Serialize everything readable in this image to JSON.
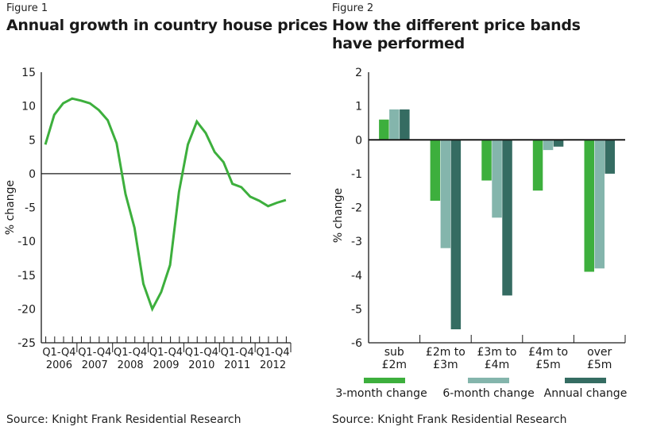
{
  "figures": [
    {
      "label": "Figure 1",
      "title": "Annual growth in country house prices",
      "source": "Source: Knight Frank Residential Research"
    },
    {
      "label": "Figure 2",
      "title_line1": "How the different price bands",
      "title_line2": "have performed",
      "source": "Source: Knight Frank Residential Research"
    }
  ],
  "colors": {
    "line": "#3daf3d",
    "three_month": "#3daf3d",
    "six_month": "#84b5ac",
    "annual": "#356c62",
    "axis": "#1a1a1a"
  },
  "chart_data": [
    {
      "type": "line",
      "title": "Annual growth in country house prices",
      "xlabel": "",
      "ylabel": "% change",
      "ylim": [
        -25,
        15
      ],
      "yticks": [
        15,
        10,
        5,
        0,
        -5,
        -10,
        -15,
        -20,
        -25
      ],
      "ytick_labels": [
        "15",
        "10",
        "5",
        "0",
        "-5",
        "-10",
        "-15",
        "-20",
        "-25"
      ],
      "x_groups": [
        {
          "quarter_label": "Q1-Q4",
          "year": "2006"
        },
        {
          "quarter_label": "Q1-Q4",
          "year": "2007"
        },
        {
          "quarter_label": "Q1-Q4",
          "year": "2008"
        },
        {
          "quarter_label": "Q1-Q4",
          "year": "2009"
        },
        {
          "quarter_label": "Q1-Q4",
          "year": "2010"
        },
        {
          "quarter_label": "Q1-Q4",
          "year": "2011"
        },
        {
          "quarter_label": "Q1-Q4",
          "year": "2012"
        }
      ],
      "grid": false,
      "series": [
        {
          "name": "Annual growth",
          "values": [
            4.3,
            8.7,
            10.4,
            11.1,
            10.8,
            10.4,
            9.4,
            7.9,
            4.5,
            -3.0,
            -8.0,
            -16.3,
            -20.0,
            -17.5,
            -13.5,
            -2.7,
            4.3,
            7.7,
            6.0,
            3.2,
            1.7,
            -1.5,
            -2.0,
            -3.4,
            -4.0,
            -4.8,
            -4.3,
            -3.9
          ]
        }
      ]
    },
    {
      "type": "bar",
      "title": "How the different price bands have performed",
      "xlabel": "",
      "ylabel": "% change",
      "ylim": [
        -6,
        2
      ],
      "yticks": [
        2,
        1,
        0,
        -1,
        -2,
        -3,
        -4,
        -5,
        -6
      ],
      "ytick_labels": [
        "2",
        "1",
        "0",
        "-1",
        "-2",
        "-3",
        "-4",
        "-5",
        "-6"
      ],
      "categories": [
        [
          "sub",
          "£2m"
        ],
        [
          "£2m to",
          "£3m"
        ],
        [
          "£3m to",
          "£4m"
        ],
        [
          "£4m to",
          "£5m"
        ],
        [
          "over",
          "£5m"
        ]
      ],
      "grid": false,
      "legend_position": "bottom",
      "series": [
        {
          "name": "3-month change",
          "values": [
            0.6,
            -1.8,
            -1.2,
            -1.5,
            -3.9
          ]
        },
        {
          "name": "6-month change",
          "values": [
            0.9,
            -3.2,
            -2.3,
            -0.3,
            -3.8
          ]
        },
        {
          "name": "Annual change",
          "values": [
            0.9,
            -5.6,
            -4.6,
            -0.2,
            -1.0
          ]
        }
      ]
    }
  ]
}
